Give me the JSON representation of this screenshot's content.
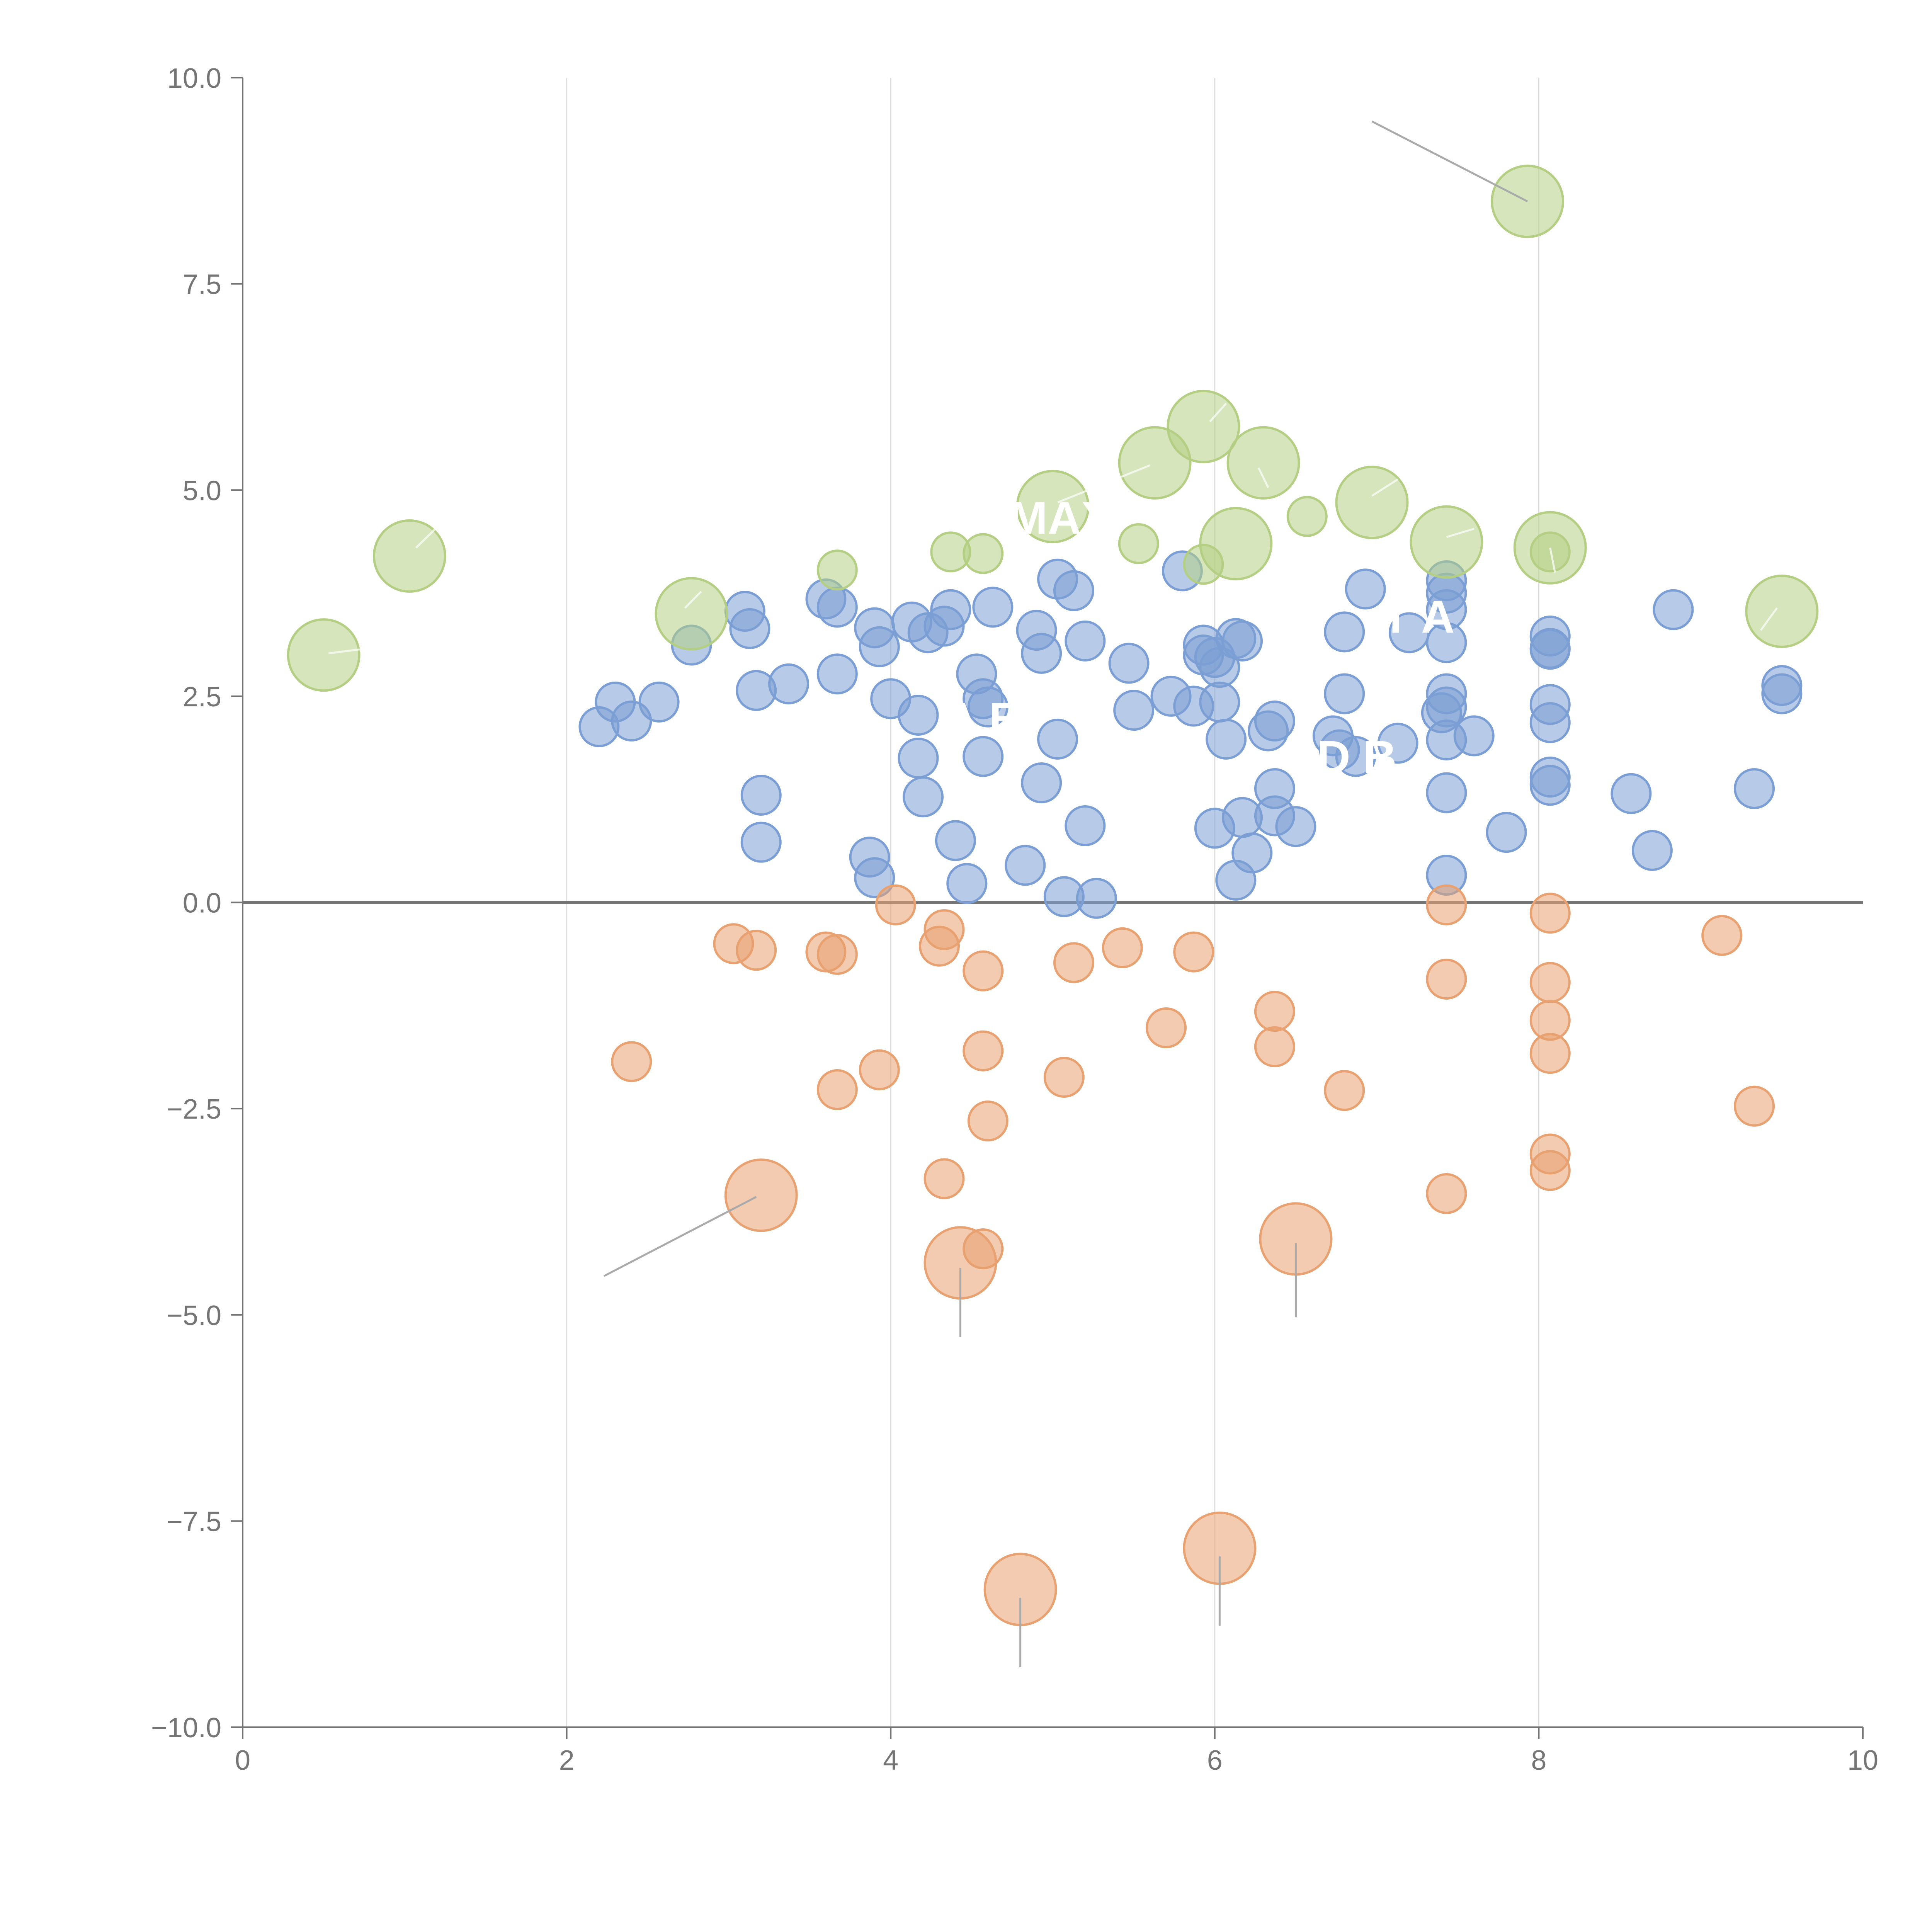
{
  "chart_data": {
    "type": "scatter",
    "title": "",
    "xlabel": "",
    "ylabel": "",
    "xlim": [
      0,
      10
    ],
    "ylim": [
      -10,
      10
    ],
    "x_ticks": [
      "0",
      "2",
      "4",
      "6",
      "8",
      "10"
    ],
    "y_ticks": [
      "10.0",
      "7.5",
      "5.0",
      "2.5",
      "0.0",
      "−2.5",
      "−5.0",
      "−7.5",
      "−10.0"
    ],
    "grid": "vertical",
    "colors": {
      "blue": "#7b9fd4",
      "orange": "#e8a170",
      "green": "#b4cf84",
      "axis": "#757575",
      "grid": "#dddddd"
    },
    "series": [
      {
        "name": "positive-near",
        "color": "blue",
        "points": [
          [
            2.2,
            2.13
          ],
          [
            2.3,
            2.43
          ],
          [
            2.4,
            2.2
          ],
          [
            2.57,
            2.43
          ],
          [
            2.77,
            3.12
          ],
          [
            3.1,
            3.53
          ],
          [
            3.13,
            3.32
          ],
          [
            3.17,
            2.57
          ],
          [
            3.2,
            1.3
          ],
          [
            3.2,
            0.73
          ],
          [
            3.37,
            2.65
          ],
          [
            3.6,
            3.68
          ],
          [
            3.67,
            3.58
          ],
          [
            3.67,
            2.77
          ],
          [
            3.87,
            0.55
          ],
          [
            3.9,
            0.3
          ],
          [
            3.9,
            3.33
          ],
          [
            3.93,
            3.1
          ],
          [
            4.0,
            2.47
          ],
          [
            4.13,
            3.4
          ],
          [
            4.17,
            2.27
          ],
          [
            4.17,
            1.75
          ],
          [
            4.2,
            1.28
          ],
          [
            4.23,
            3.27
          ],
          [
            4.33,
            3.35
          ],
          [
            4.37,
            3.55
          ],
          [
            4.4,
            0.75
          ],
          [
            4.47,
            0.23
          ],
          [
            4.53,
            2.77
          ],
          [
            4.57,
            2.47
          ],
          [
            4.57,
            1.77
          ],
          [
            4.6,
            2.37
          ],
          [
            4.63,
            3.58
          ],
          [
            4.83,
            0.45
          ],
          [
            4.9,
            3.3
          ],
          [
            4.93,
            3.02
          ],
          [
            4.93,
            1.45
          ],
          [
            5.03,
            3.92
          ],
          [
            5.03,
            1.98
          ],
          [
            5.07,
            0.07
          ],
          [
            5.13,
            3.78
          ],
          [
            5.2,
            0.93
          ],
          [
            5.2,
            3.17
          ],
          [
            5.27,
            0.05
          ],
          [
            5.47,
            2.9
          ],
          [
            5.5,
            2.33
          ],
          [
            5.73,
            2.5
          ],
          [
            5.8,
            4.02
          ],
          [
            5.87,
            2.38
          ],
          [
            5.93,
            3.12
          ],
          [
            5.93,
            3.0
          ],
          [
            6.0,
            2.97
          ],
          [
            6.03,
            2.85
          ],
          [
            6.0,
            0.9
          ],
          [
            6.03,
            2.43
          ],
          [
            6.07,
            1.98
          ],
          [
            6.13,
            0.27
          ],
          [
            6.13,
            3.2
          ],
          [
            6.17,
            3.17
          ],
          [
            6.17,
            1.03
          ],
          [
            6.23,
            0.6
          ],
          [
            6.33,
            2.08
          ],
          [
            6.37,
            2.2
          ],
          [
            6.37,
            1.38
          ],
          [
            6.37,
            1.05
          ],
          [
            6.5,
            0.92
          ],
          [
            6.73,
            2.02
          ],
          [
            6.77,
            1.85
          ],
          [
            6.8,
            3.28
          ],
          [
            6.8,
            2.53
          ],
          [
            6.87,
            1.77
          ],
          [
            6.93,
            3.8
          ],
          [
            7.13,
            1.93
          ],
          [
            7.2,
            3.27
          ],
          [
            7.4,
            2.3
          ],
          [
            7.43,
            3.9
          ],
          [
            7.43,
            3.75
          ],
          [
            7.43,
            3.55
          ],
          [
            7.43,
            3.15
          ],
          [
            7.43,
            2.53
          ],
          [
            7.43,
            2.37
          ],
          [
            7.43,
            1.97
          ],
          [
            7.43,
            1.33
          ],
          [
            7.43,
            0.33
          ],
          [
            7.6,
            2.02
          ],
          [
            7.8,
            0.85
          ],
          [
            8.07,
            3.23
          ],
          [
            8.07,
            3.08
          ],
          [
            8.07,
            3.07
          ],
          [
            8.07,
            2.4
          ],
          [
            8.07,
            2.18
          ],
          [
            8.07,
            1.52
          ],
          [
            8.07,
            1.42
          ],
          [
            8.57,
            1.32
          ],
          [
            8.7,
            0.63
          ],
          [
            8.83,
            3.55
          ],
          [
            9.33,
            1.38
          ],
          [
            9.5,
            2.63
          ],
          [
            9.5,
            2.53
          ]
        ]
      },
      {
        "name": "negative-near",
        "color": "orange",
        "points": [
          [
            2.4,
            -1.93
          ],
          [
            3.03,
            -0.5
          ],
          [
            3.17,
            -0.58
          ],
          [
            3.6,
            -0.6
          ],
          [
            3.67,
            -0.63
          ],
          [
            3.67,
            -2.27
          ],
          [
            3.93,
            -2.03
          ],
          [
            4.03,
            -0.03
          ],
          [
            4.3,
            -0.53
          ],
          [
            4.33,
            -0.33
          ],
          [
            4.33,
            -3.35
          ],
          [
            4.57,
            -0.83
          ],
          [
            4.57,
            -1.8
          ],
          [
            4.6,
            -2.65
          ],
          [
            4.57,
            -4.2
          ],
          [
            5.13,
            -0.73
          ],
          [
            5.07,
            -2.12
          ],
          [
            5.43,
            -0.55
          ],
          [
            5.7,
            -1.52
          ],
          [
            5.87,
            -0.6
          ],
          [
            6.37,
            -1.32
          ],
          [
            6.37,
            -1.75
          ],
          [
            6.8,
            -2.28
          ],
          [
            7.43,
            -0.03
          ],
          [
            7.43,
            -0.93
          ],
          [
            7.43,
            -3.53
          ],
          [
            8.07,
            -0.13
          ],
          [
            8.07,
            -0.97
          ],
          [
            8.07,
            -1.43
          ],
          [
            8.07,
            -1.83
          ],
          [
            8.07,
            -3.05
          ],
          [
            8.07,
            -3.25
          ],
          [
            9.13,
            -0.4
          ],
          [
            9.33,
            -2.47
          ]
        ]
      },
      {
        "name": "positive-outer",
        "color": "green",
        "points": [
          [
            3.67,
            4.03
          ],
          [
            4.37,
            4.25
          ],
          [
            4.57,
            4.23
          ],
          [
            5.53,
            4.35
          ],
          [
            5.93,
            4.1
          ],
          [
            6.57,
            4.68
          ],
          [
            8.07,
            4.25
          ]
        ]
      }
    ],
    "large_points": [
      {
        "series": "green",
        "x": 0.5,
        "y": 3.0
      },
      {
        "series": "green",
        "x": 1.03,
        "y": 4.2
      },
      {
        "series": "green",
        "x": 2.77,
        "y": 3.5
      },
      {
        "series": "green",
        "x": 5.0,
        "y": 4.8
      },
      {
        "series": "green",
        "x": 5.63,
        "y": 5.33
      },
      {
        "series": "green",
        "x": 5.93,
        "y": 5.77
      },
      {
        "series": "green",
        "x": 6.13,
        "y": 4.35
      },
      {
        "series": "green",
        "x": 6.3,
        "y": 5.33
      },
      {
        "series": "green",
        "x": 6.97,
        "y": 4.85
      },
      {
        "series": "green",
        "x": 7.43,
        "y": 4.37
      },
      {
        "series": "green",
        "x": 8.07,
        "y": 4.3
      },
      {
        "series": "green",
        "x": 7.93,
        "y": 8.5
      },
      {
        "series": "green",
        "x": 9.5,
        "y": 3.53
      },
      {
        "series": "orange",
        "x": 3.2,
        "y": -3.55
      },
      {
        "series": "orange",
        "x": 4.43,
        "y": -4.37
      },
      {
        "series": "orange",
        "x": 4.8,
        "y": -8.33
      },
      {
        "series": "orange",
        "x": 6.03,
        "y": -7.83
      },
      {
        "series": "orange",
        "x": 6.5,
        "y": -4.08
      }
    ],
    "leader_lines": [
      {
        "from": [
          7.93,
          8.5
        ],
        "to": [
          6.97,
          9.47
        ],
        "visible": true
      },
      {
        "from": [
          3.17,
          -3.57
        ],
        "to": [
          2.23,
          -4.53
        ],
        "visible": true
      },
      {
        "from": [
          4.43,
          -4.43
        ],
        "to": [
          4.43,
          -5.27
        ],
        "visible": true
      },
      {
        "from": [
          4.8,
          -8.43
        ],
        "to": [
          4.8,
          -9.27
        ],
        "visible": true
      },
      {
        "from": [
          6.03,
          -7.93
        ],
        "to": [
          6.03,
          -8.77
        ],
        "visible": true
      },
      {
        "from": [
          6.5,
          -4.13
        ],
        "to": [
          6.5,
          -5.03
        ],
        "visible": true
      },
      {
        "from": [
          0.53,
          3.02
        ],
        "to": [
          0.73,
          3.07
        ],
        "visible": false
      },
      {
        "from": [
          1.07,
          4.3
        ],
        "to": [
          1.2,
          4.55
        ],
        "visible": false
      },
      {
        "from": [
          2.73,
          3.57
        ],
        "to": [
          2.83,
          3.77
        ],
        "visible": false
      },
      {
        "from": [
          5.03,
          4.85
        ],
        "to": [
          5.6,
          5.3
        ],
        "visible": false
      },
      {
        "from": [
          5.97,
          5.83
        ],
        "to": [
          6.07,
          6.05
        ],
        "visible": false
      },
      {
        "from": [
          6.27,
          5.27
        ],
        "to": [
          6.33,
          5.03
        ],
        "visible": false
      },
      {
        "from": [
          6.97,
          4.93
        ],
        "to": [
          7.13,
          5.13
        ],
        "visible": false
      },
      {
        "from": [
          7.43,
          4.43
        ],
        "to": [
          7.6,
          4.53
        ],
        "visible": false
      },
      {
        "from": [
          8.07,
          4.3
        ],
        "to": [
          8.1,
          4.0
        ],
        "visible": false
      },
      {
        "from": [
          9.47,
          3.57
        ],
        "to": [
          9.37,
          3.3
        ],
        "visible": false
      }
    ],
    "annotations": [
      {
        "text": "MAX",
        "x": 4.73,
        "y": 4.47
      },
      {
        "text": "A B",
        "x": 4.33,
        "y": 2.03
      },
      {
        "text": "D B",
        "x": 6.63,
        "y": 1.57
      },
      {
        "text": "T A",
        "x": 7.03,
        "y": 3.27
      }
    ]
  }
}
